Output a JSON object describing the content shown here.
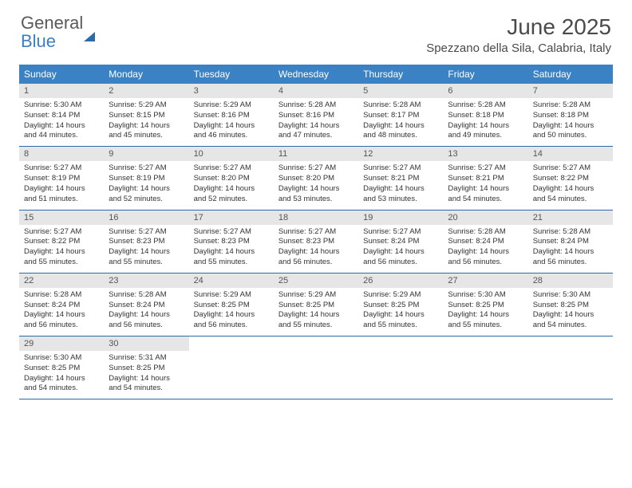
{
  "logo": {
    "text_general": "General",
    "text_blue": "Blue"
  },
  "title": "June 2025",
  "location": "Spezzano della Sila, Calabria, Italy",
  "colors": {
    "header_bg": "#3b82c4",
    "header_text": "#ffffff",
    "daynum_bg": "#e6e6e6",
    "border": "#2d6aa8",
    "logo_gray": "#5a5a5a",
    "logo_blue": "#3b7fc4"
  },
  "day_names": [
    "Sunday",
    "Monday",
    "Tuesday",
    "Wednesday",
    "Thursday",
    "Friday",
    "Saturday"
  ],
  "weeks": [
    [
      {
        "n": "1",
        "sr": "5:30 AM",
        "ss": "8:14 PM",
        "dl": "14 hours and 44 minutes."
      },
      {
        "n": "2",
        "sr": "5:29 AM",
        "ss": "8:15 PM",
        "dl": "14 hours and 45 minutes."
      },
      {
        "n": "3",
        "sr": "5:29 AM",
        "ss": "8:16 PM",
        "dl": "14 hours and 46 minutes."
      },
      {
        "n": "4",
        "sr": "5:28 AM",
        "ss": "8:16 PM",
        "dl": "14 hours and 47 minutes."
      },
      {
        "n": "5",
        "sr": "5:28 AM",
        "ss": "8:17 PM",
        "dl": "14 hours and 48 minutes."
      },
      {
        "n": "6",
        "sr": "5:28 AM",
        "ss": "8:18 PM",
        "dl": "14 hours and 49 minutes."
      },
      {
        "n": "7",
        "sr": "5:28 AM",
        "ss": "8:18 PM",
        "dl": "14 hours and 50 minutes."
      }
    ],
    [
      {
        "n": "8",
        "sr": "5:27 AM",
        "ss": "8:19 PM",
        "dl": "14 hours and 51 minutes."
      },
      {
        "n": "9",
        "sr": "5:27 AM",
        "ss": "8:19 PM",
        "dl": "14 hours and 52 minutes."
      },
      {
        "n": "10",
        "sr": "5:27 AM",
        "ss": "8:20 PM",
        "dl": "14 hours and 52 minutes."
      },
      {
        "n": "11",
        "sr": "5:27 AM",
        "ss": "8:20 PM",
        "dl": "14 hours and 53 minutes."
      },
      {
        "n": "12",
        "sr": "5:27 AM",
        "ss": "8:21 PM",
        "dl": "14 hours and 53 minutes."
      },
      {
        "n": "13",
        "sr": "5:27 AM",
        "ss": "8:21 PM",
        "dl": "14 hours and 54 minutes."
      },
      {
        "n": "14",
        "sr": "5:27 AM",
        "ss": "8:22 PM",
        "dl": "14 hours and 54 minutes."
      }
    ],
    [
      {
        "n": "15",
        "sr": "5:27 AM",
        "ss": "8:22 PM",
        "dl": "14 hours and 55 minutes."
      },
      {
        "n": "16",
        "sr": "5:27 AM",
        "ss": "8:23 PM",
        "dl": "14 hours and 55 minutes."
      },
      {
        "n": "17",
        "sr": "5:27 AM",
        "ss": "8:23 PM",
        "dl": "14 hours and 55 minutes."
      },
      {
        "n": "18",
        "sr": "5:27 AM",
        "ss": "8:23 PM",
        "dl": "14 hours and 56 minutes."
      },
      {
        "n": "19",
        "sr": "5:27 AM",
        "ss": "8:24 PM",
        "dl": "14 hours and 56 minutes."
      },
      {
        "n": "20",
        "sr": "5:28 AM",
        "ss": "8:24 PM",
        "dl": "14 hours and 56 minutes."
      },
      {
        "n": "21",
        "sr": "5:28 AM",
        "ss": "8:24 PM",
        "dl": "14 hours and 56 minutes."
      }
    ],
    [
      {
        "n": "22",
        "sr": "5:28 AM",
        "ss": "8:24 PM",
        "dl": "14 hours and 56 minutes."
      },
      {
        "n": "23",
        "sr": "5:28 AM",
        "ss": "8:24 PM",
        "dl": "14 hours and 56 minutes."
      },
      {
        "n": "24",
        "sr": "5:29 AM",
        "ss": "8:25 PM",
        "dl": "14 hours and 56 minutes."
      },
      {
        "n": "25",
        "sr": "5:29 AM",
        "ss": "8:25 PM",
        "dl": "14 hours and 55 minutes."
      },
      {
        "n": "26",
        "sr": "5:29 AM",
        "ss": "8:25 PM",
        "dl": "14 hours and 55 minutes."
      },
      {
        "n": "27",
        "sr": "5:30 AM",
        "ss": "8:25 PM",
        "dl": "14 hours and 55 minutes."
      },
      {
        "n": "28",
        "sr": "5:30 AM",
        "ss": "8:25 PM",
        "dl": "14 hours and 54 minutes."
      }
    ],
    [
      {
        "n": "29",
        "sr": "5:30 AM",
        "ss": "8:25 PM",
        "dl": "14 hours and 54 minutes."
      },
      {
        "n": "30",
        "sr": "5:31 AM",
        "ss": "8:25 PM",
        "dl": "14 hours and 54 minutes."
      },
      null,
      null,
      null,
      null,
      null
    ]
  ],
  "labels": {
    "sunrise": "Sunrise:",
    "sunset": "Sunset:",
    "daylight": "Daylight:"
  }
}
